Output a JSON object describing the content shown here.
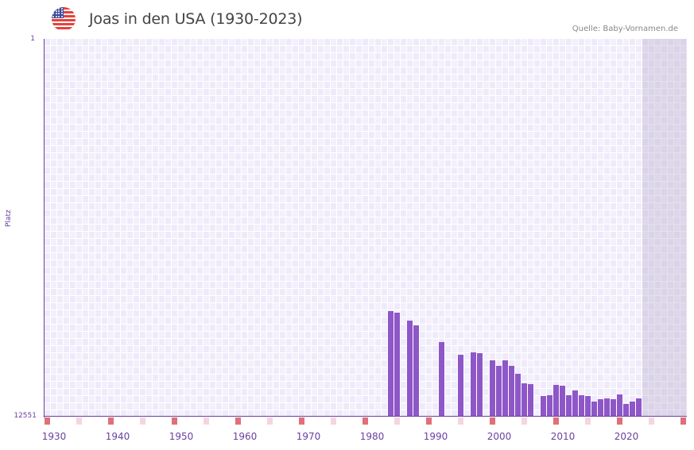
{
  "header": {
    "flag_icon": "us-flag-icon",
    "title": "Joas in den USA (1930-2023)",
    "source": "Quelle: Baby-Vornamen.de"
  },
  "axes": {
    "ylabel": "Platz",
    "ytick_top": "1",
    "ytick_bottom": "12551",
    "xticks": [
      "1930",
      "1940",
      "1950",
      "1960",
      "1970",
      "1980",
      "1990",
      "2000",
      "2010",
      "2020"
    ]
  },
  "colors": {
    "bar": "#8e57c8",
    "axis": "#6a3fa0",
    "marker_decade": "#e07078",
    "marker_half": "#f5d5de",
    "grid_a": "#efeafb",
    "grid_b": "#f3f0fc"
  },
  "chart_data": {
    "type": "bar",
    "title": "Joas in den USA (1930-2023)",
    "xlabel": "",
    "ylabel": "Platz",
    "ylim": [
      12551,
      1
    ],
    "y_inverted": true,
    "x_range": [
      1928,
      2028
    ],
    "future_region_start": 2022,
    "grid": true,
    "legend": "none",
    "categories": [
      1982,
      1983,
      1985,
      1986,
      1990,
      1993,
      1995,
      1996,
      1998,
      1999,
      2000,
      2001,
      2002,
      2003,
      2004,
      2006,
      2007,
      2008,
      2009,
      2010,
      2011,
      2012,
      2013,
      2014,
      2015,
      2016,
      2017,
      2018,
      2019,
      2020,
      2021
    ],
    "values": [
      9051,
      9103,
      9367,
      9525,
      10078,
      10500,
      10421,
      10447,
      10685,
      10869,
      10685,
      10869,
      11133,
      11449,
      11476,
      11871,
      11845,
      11502,
      11529,
      11845,
      11687,
      11845,
      11871,
      12056,
      11977,
      11950,
      11977,
      11819,
      12135,
      12056,
      11950
    ]
  }
}
